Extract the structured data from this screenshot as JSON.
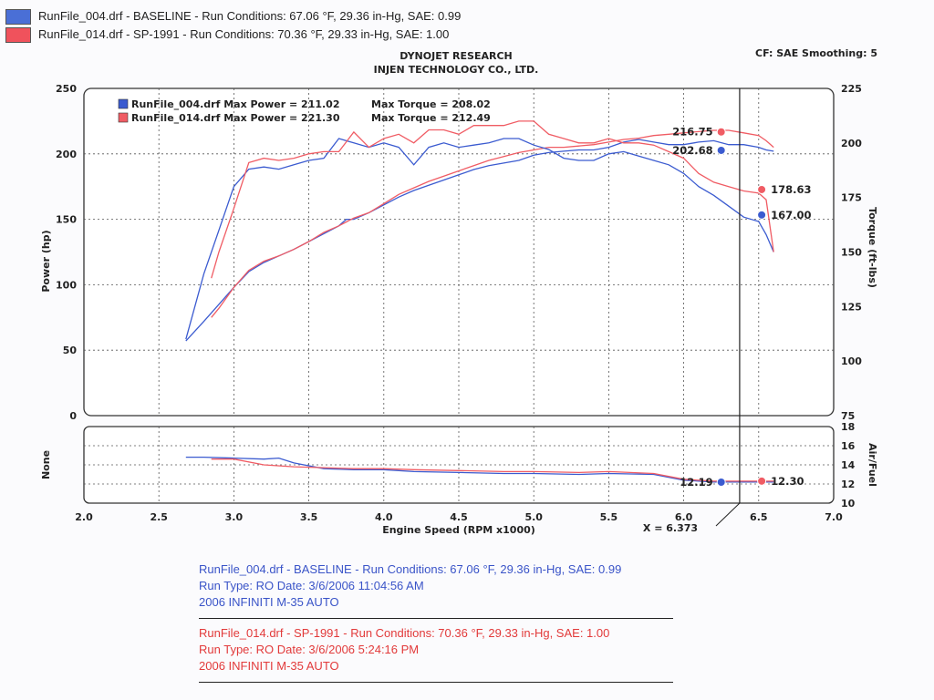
{
  "legend": [
    {
      "text": "RunFile_004.drf - BASELINE  -  Run Conditions: 67.06 °F, 29.36 in-Hg, SAE: 0.99",
      "color": "#4a6fd6"
    },
    {
      "text": "RunFile_014.drf - SP-1991  -  Run Conditions: 70.36 °F, 29.33 in-Hg, SAE: 1.00",
      "color": "#f0525c"
    }
  ],
  "header": {
    "line1": "DYNOJET RESEARCH",
    "line2": "INJEN TECHNOLOGY CO., LTD.",
    "right": "CF: SAE  Smoothing: 5"
  },
  "chart_data": {
    "type": "line",
    "colors": {
      "baseline": "#3b5bd0",
      "sp1991": "#f05c64"
    },
    "main": {
      "xlabel": "Engine Speed (RPM x1000)",
      "ylabel_left": "Power (hp)",
      "ylabel_right": "Torque (ft-lbs)",
      "xlim": [
        2.0,
        7.0
      ],
      "ylim_left": [
        0,
        250
      ],
      "ylim_right": [
        75,
        225
      ],
      "x_ticks": [
        "2.0",
        "2.5",
        "3.0",
        "3.5",
        "4.0",
        "4.5",
        "5.0",
        "5.5",
        "6.0",
        "6.5",
        "7.0"
      ],
      "y_ticks_left": [
        "0",
        "50",
        "100",
        "150",
        "200",
        "250"
      ],
      "y_ticks_right": [
        "75",
        "100",
        "125",
        "150",
        "175",
        "200",
        "225"
      ],
      "grid": true,
      "inner_legend": [
        {
          "label": "RunFile_004.drf Max Power = 211.02",
          "torque": "Max Torque = 208.02",
          "color": "#3b5bd0"
        },
        {
          "label": "RunFile_014.drf Max Power = 221.30",
          "torque": "Max Torque = 212.49",
          "color": "#f05c64"
        }
      ],
      "series": [
        {
          "name": "RunFile_004.drf",
          "kind": "power",
          "color": "#3b5bd0",
          "x": [
            2.68,
            2.8,
            2.9,
            3.0,
            3.1,
            3.2,
            3.3,
            3.4,
            3.5,
            3.6,
            3.7,
            3.75,
            3.8,
            3.9,
            4.0,
            4.1,
            4.2,
            4.3,
            4.4,
            4.5,
            4.6,
            4.7,
            4.8,
            4.9,
            5.0,
            5.1,
            5.2,
            5.3,
            5.4,
            5.5,
            5.6,
            5.7,
            5.8,
            5.9,
            6.0,
            6.1,
            6.2,
            6.3,
            6.4,
            6.5,
            6.55,
            6.6
          ],
          "y": [
            57,
            72,
            85,
            98,
            110,
            117,
            122,
            127,
            133,
            139,
            145,
            150,
            150,
            155,
            161,
            167,
            172,
            176,
            180,
            184,
            188,
            191,
            193,
            195,
            199,
            201,
            202,
            203,
            203,
            205,
            209,
            211,
            209,
            207,
            207,
            209,
            210,
            207,
            207,
            205,
            203,
            202
          ]
        },
        {
          "name": "RunFile_014.drf",
          "kind": "power",
          "color": "#f05c64",
          "x": [
            2.85,
            2.9,
            3.0,
            3.1,
            3.2,
            3.3,
            3.4,
            3.5,
            3.6,
            3.7,
            3.75,
            3.8,
            3.9,
            4.0,
            4.1,
            4.2,
            4.3,
            4.4,
            4.5,
            4.6,
            4.7,
            4.8,
            4.9,
            5.0,
            5.1,
            5.2,
            5.3,
            5.4,
            5.5,
            5.6,
            5.7,
            5.8,
            5.9,
            6.0,
            6.1,
            6.2,
            6.3,
            6.4,
            6.5,
            6.55,
            6.6
          ],
          "y": [
            75,
            82,
            98,
            111,
            118,
            122,
            127,
            133,
            140,
            145,
            148,
            151,
            155,
            162,
            169,
            174,
            179,
            183,
            187,
            191,
            195,
            198,
            201,
            203,
            205,
            205,
            206,
            207,
            209,
            211,
            212,
            214,
            215,
            216,
            217,
            218,
            218,
            216,
            214,
            210,
            205
          ]
        },
        {
          "name": "RunFile_004.drf",
          "kind": "torque",
          "color": "#3b5bd0",
          "x": [
            2.68,
            2.8,
            2.9,
            3.0,
            3.1,
            3.2,
            3.3,
            3.4,
            3.5,
            3.6,
            3.7,
            3.8,
            3.9,
            4.0,
            4.1,
            4.2,
            4.3,
            4.4,
            4.5,
            4.6,
            4.7,
            4.8,
            4.9,
            5.0,
            5.1,
            5.2,
            5.3,
            5.4,
            5.5,
            5.6,
            5.7,
            5.8,
            5.9,
            6.0,
            6.1,
            6.2,
            6.3,
            6.4,
            6.5,
            6.55,
            6.6
          ],
          "y": [
            110,
            140,
            160,
            180,
            188,
            189,
            188,
            190,
            192,
            193,
            202,
            200,
            198,
            200,
            198,
            190,
            198,
            200,
            198,
            199,
            200,
            202,
            202,
            199,
            197,
            193,
            192,
            192,
            195,
            196,
            194,
            192,
            190,
            186,
            180,
            176,
            171,
            166,
            164,
            158,
            150
          ]
        },
        {
          "name": "RunFile_014.drf",
          "kind": "torque",
          "color": "#f05c64",
          "x": [
            2.85,
            2.9,
            3.0,
            3.1,
            3.2,
            3.3,
            3.4,
            3.5,
            3.6,
            3.7,
            3.8,
            3.9,
            4.0,
            4.1,
            4.2,
            4.3,
            4.4,
            4.5,
            4.6,
            4.7,
            4.8,
            4.9,
            5.0,
            5.1,
            5.2,
            5.3,
            5.4,
            5.5,
            5.6,
            5.7,
            5.8,
            5.9,
            6.0,
            6.1,
            6.2,
            6.3,
            6.4,
            6.5,
            6.55,
            6.6
          ],
          "y": [
            138,
            150,
            170,
            191,
            193,
            192,
            193,
            195,
            196,
            196,
            205,
            198,
            202,
            204,
            200,
            206,
            206,
            204,
            208,
            208,
            208,
            210,
            210,
            204,
            202,
            200,
            200,
            202,
            200,
            200,
            199,
            196,
            193,
            186,
            182,
            180,
            178,
            177,
            174,
            150
          ]
        }
      ],
      "markers": [
        {
          "x": 6.25,
          "axis": "left",
          "y": 216.75,
          "label": "216.75",
          "color": "#f05c64",
          "side": "left"
        },
        {
          "x": 6.25,
          "axis": "left",
          "y": 202.68,
          "label": "202.68",
          "color": "#3b5bd0",
          "side": "left"
        },
        {
          "x": 6.52,
          "axis": "right",
          "y": 178.63,
          "label": "178.63",
          "color": "#f05c64",
          "side": "right"
        },
        {
          "x": 6.52,
          "axis": "right",
          "y": 167.0,
          "label": "167.00",
          "color": "#3b5bd0",
          "side": "right"
        }
      ],
      "cursor": {
        "x": 6.373,
        "label": "X = 6.373"
      }
    },
    "sub": {
      "ylabel_left": "None",
      "ylabel_right": "Air/Fuel",
      "ylim": [
        10,
        18
      ],
      "y_ticks": [
        "10",
        "12",
        "14",
        "16",
        "18"
      ],
      "series": [
        {
          "name": "RunFile_004.drf",
          "kind": "air_fuel",
          "color": "#3b5bd0",
          "x": [
            2.68,
            2.8,
            3.0,
            3.2,
            3.3,
            3.4,
            3.6,
            3.8,
            4.0,
            4.2,
            4.5,
            4.8,
            5.0,
            5.3,
            5.5,
            5.8,
            6.0,
            6.2,
            6.4,
            6.6
          ],
          "y": [
            14.8,
            14.8,
            14.7,
            14.6,
            14.7,
            14.2,
            13.6,
            13.5,
            13.5,
            13.3,
            13.2,
            13.1,
            13.1,
            13.0,
            13.1,
            13.0,
            12.4,
            12.2,
            12.2,
            12.2
          ]
        },
        {
          "name": "RunFile_014.drf",
          "kind": "air_fuel",
          "color": "#f05c64",
          "x": [
            2.85,
            3.0,
            3.2,
            3.4,
            3.6,
            3.8,
            4.0,
            4.2,
            4.5,
            4.8,
            5.0,
            5.3,
            5.5,
            5.8,
            6.0,
            6.2,
            6.4,
            6.6
          ],
          "y": [
            14.6,
            14.6,
            14.0,
            13.8,
            13.7,
            13.6,
            13.6,
            13.5,
            13.4,
            13.3,
            13.3,
            13.2,
            13.3,
            13.1,
            12.5,
            12.3,
            12.3,
            12.3
          ]
        }
      ],
      "markers": [
        {
          "x": 6.25,
          "y": 12.19,
          "label": "12.19",
          "color": "#3b5bd0",
          "side": "left"
        },
        {
          "x": 6.52,
          "y": 12.3,
          "label": "12.30",
          "color": "#f05c64",
          "side": "right"
        }
      ]
    }
  },
  "footer": {
    "blue": {
      "line1": "RunFile_004.drf - BASELINE  -  Run Conditions: 67.06 °F, 29.36 in-Hg, SAE: 0.99",
      "line2": "Run Type: RO  Date: 3/6/2006 11:04:56 AM",
      "line3": "2006  INFINITI M-35 AUTO"
    },
    "red": {
      "line1": "RunFile_014.drf - SP-1991  -  Run Conditions: 70.36 °F, 29.33 in-Hg, SAE: 1.00",
      "line2": "Run Type: RO  Date: 3/6/2006 5:24:16 PM",
      "line3": "2006  INFINITI M-35 AUTO"
    }
  }
}
